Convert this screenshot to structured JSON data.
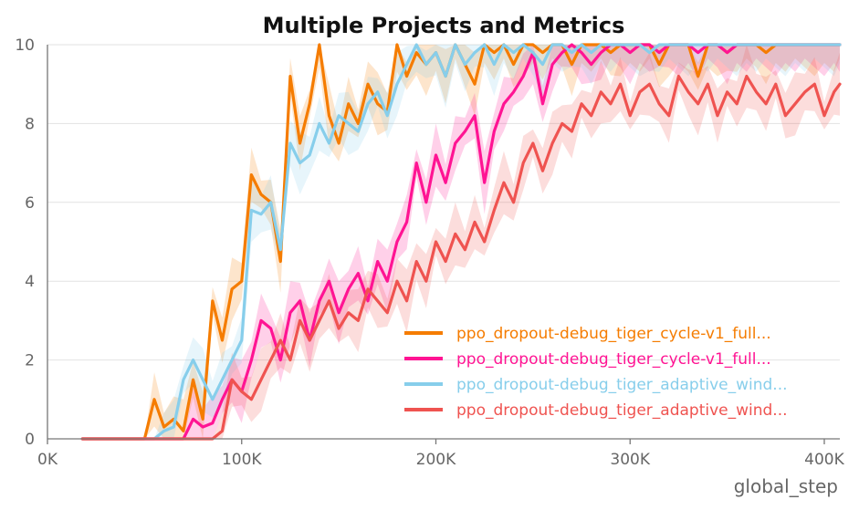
{
  "chart_data": {
    "type": "line",
    "title": "Multiple Projects and Metrics",
    "xlabel": "global_step",
    "ylabel": "",
    "xlim": [
      0,
      408000
    ],
    "ylim": [
      0,
      10
    ],
    "x_ticks": [
      {
        "value": 0,
        "label": "0K"
      },
      {
        "value": 100000,
        "label": "100K"
      },
      {
        "value": 200000,
        "label": "200K"
      },
      {
        "value": 300000,
        "label": "300K"
      },
      {
        "value": 400000,
        "label": "400K"
      }
    ],
    "y_ticks": [
      {
        "value": 0,
        "label": "0"
      },
      {
        "value": 2,
        "label": "2"
      },
      {
        "value": 4,
        "label": "4"
      },
      {
        "value": 6,
        "label": "6"
      },
      {
        "value": 8,
        "label": "8"
      },
      {
        "value": 10,
        "label": "10"
      }
    ],
    "grid": true,
    "legend_position": "bottom-right",
    "x": [
      18000,
      30000,
      40000,
      50000,
      55000,
      60000,
      65000,
      70000,
      75000,
      80000,
      85000,
      90000,
      95000,
      100000,
      105000,
      110000,
      115000,
      120000,
      125000,
      130000,
      135000,
      140000,
      145000,
      150000,
      155000,
      160000,
      165000,
      170000,
      175000,
      180000,
      185000,
      190000,
      195000,
      200000,
      205000,
      210000,
      215000,
      220000,
      225000,
      230000,
      235000,
      240000,
      245000,
      250000,
      255000,
      260000,
      265000,
      270000,
      275000,
      280000,
      285000,
      290000,
      295000,
      300000,
      305000,
      310000,
      315000,
      320000,
      325000,
      330000,
      335000,
      340000,
      345000,
      350000,
      355000,
      360000,
      365000,
      370000,
      375000,
      380000,
      385000,
      390000,
      395000,
      400000,
      405000,
      408000
    ],
    "series": [
      {
        "name": "ppo_dropout-debug_tiger_cycle-v1_full...",
        "color": "#f57c00",
        "values": [
          0,
          0,
          0,
          0,
          1.0,
          0.3,
          0.5,
          0.2,
          1.5,
          0.5,
          3.5,
          2.5,
          3.8,
          4.0,
          6.7,
          6.2,
          6.0,
          4.5,
          9.2,
          7.5,
          8.5,
          10.0,
          8.2,
          7.5,
          8.5,
          8.0,
          9.0,
          8.5,
          8.3,
          10.0,
          9.2,
          9.8,
          9.5,
          9.8,
          9.2,
          10.0,
          9.5,
          9.0,
          10.0,
          9.8,
          10.0,
          9.5,
          10.0,
          10.0,
          9.8,
          10.0,
          10.0,
          9.5,
          10.0,
          10.0,
          10.0,
          9.8,
          10.0,
          10.0,
          10.0,
          10.0,
          9.5,
          10.0,
          10.0,
          10.0,
          9.2,
          10.0,
          10.0,
          9.8,
          10.0,
          10.0,
          10.0,
          9.8,
          10.0,
          10.0,
          10.0,
          10.0,
          10.0,
          10.0,
          10.0,
          10.0
        ]
      },
      {
        "name": "ppo_dropout-debug_tiger_cycle-v1_full...",
        "color": "#ff1493",
        "values": [
          0,
          0,
          0,
          0,
          0,
          0,
          0,
          0,
          0.5,
          0.3,
          0.4,
          1.0,
          1.5,
          1.2,
          2.0,
          3.0,
          2.8,
          2.0,
          3.2,
          3.5,
          2.5,
          3.5,
          4.0,
          3.2,
          3.8,
          4.2,
          3.5,
          4.5,
          4.0,
          5.0,
          5.5,
          7.0,
          6.0,
          7.2,
          6.5,
          7.5,
          7.8,
          8.2,
          6.5,
          7.8,
          8.5,
          8.8,
          9.2,
          9.8,
          8.5,
          9.5,
          9.8,
          10.0,
          9.8,
          9.5,
          9.8,
          10.0,
          10.0,
          9.8,
          10.0,
          10.0,
          9.8,
          10.0,
          10.0,
          10.0,
          9.8,
          10.0,
          10.0,
          9.8,
          10.0,
          10.0,
          10.0,
          10.0,
          10.0,
          10.0,
          10.0,
          10.0,
          10.0,
          10.0,
          10.0,
          10.0
        ]
      },
      {
        "name": "ppo_dropout-debug_tiger_adaptive_wind...",
        "color": "#87ceeb",
        "values": [
          0,
          0,
          0,
          0,
          0,
          0.2,
          0.3,
          1.5,
          2.0,
          1.5,
          1.0,
          1.5,
          2.0,
          2.5,
          5.8,
          5.7,
          6.0,
          4.8,
          7.5,
          7.0,
          7.2,
          8.0,
          7.5,
          8.2,
          8.0,
          7.8,
          8.5,
          8.8,
          8.2,
          9.0,
          9.5,
          10.0,
          9.5,
          9.8,
          9.2,
          10.0,
          9.5,
          9.8,
          10.0,
          9.5,
          10.0,
          9.8,
          10.0,
          9.8,
          9.5,
          10.0,
          10.0,
          9.8,
          10.0,
          9.8,
          10.0,
          10.0,
          10.0,
          10.0,
          10.0,
          9.8,
          10.0,
          10.0,
          10.0,
          10.0,
          10.0,
          10.0,
          10.0,
          10.0,
          10.0,
          10.0,
          10.0,
          10.0,
          10.0,
          10.0,
          10.0,
          10.0,
          10.0,
          10.0,
          10.0,
          10.0
        ]
      },
      {
        "name": "ppo_dropout-debug_tiger_adaptive_wind...",
        "color": "#ef5350",
        "values": [
          0,
          0,
          0,
          0,
          0,
          0,
          0,
          0,
          0,
          0,
          0,
          0.2,
          1.5,
          1.2,
          1.0,
          1.5,
          2.0,
          2.5,
          2.0,
          3.0,
          2.5,
          3.0,
          3.5,
          2.8,
          3.2,
          3.0,
          3.8,
          3.5,
          3.2,
          4.0,
          3.5,
          4.5,
          4.0,
          5.0,
          4.5,
          5.2,
          4.8,
          5.5,
          5.0,
          5.8,
          6.5,
          6.0,
          7.0,
          7.5,
          6.8,
          7.5,
          8.0,
          7.8,
          8.5,
          8.2,
          8.8,
          8.5,
          9.0,
          8.2,
          8.8,
          9.0,
          8.5,
          8.2,
          9.2,
          8.8,
          8.5,
          9.0,
          8.2,
          8.8,
          8.5,
          9.2,
          8.8,
          8.5,
          9.0,
          8.2,
          8.5,
          8.8,
          9.0,
          8.2,
          8.8,
          9.0
        ]
      }
    ]
  }
}
